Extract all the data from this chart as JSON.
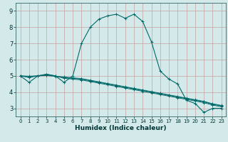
{
  "title": "",
  "xlabel": "Humidex (Indice chaleur)",
  "ylabel": "",
  "bg_color": "#d4eaea",
  "grid_color": "#c8a0a0",
  "line_color": "#006868",
  "xlim": [
    -0.5,
    23.5
  ],
  "ylim": [
    2.5,
    9.5
  ],
  "xticks": [
    0,
    1,
    2,
    3,
    4,
    5,
    6,
    7,
    8,
    9,
    10,
    11,
    12,
    13,
    14,
    15,
    16,
    17,
    18,
    19,
    20,
    21,
    22,
    23
  ],
  "yticks": [
    3,
    4,
    5,
    6,
    7,
    8,
    9
  ],
  "line1_x": [
    0,
    1,
    2,
    3,
    4,
    5,
    6,
    7,
    8,
    9,
    10,
    11,
    12,
    13,
    14,
    15,
    16,
    17,
    18,
    19,
    20,
    21,
    22,
    23
  ],
  "line1_y": [
    5.0,
    4.6,
    5.0,
    5.1,
    5.0,
    4.6,
    5.0,
    7.0,
    8.0,
    8.5,
    8.7,
    8.8,
    8.55,
    8.8,
    8.35,
    7.1,
    5.3,
    4.8,
    4.5,
    3.5,
    3.3,
    2.75,
    3.0,
    3.0
  ],
  "line2_x": [
    0,
    1,
    2,
    3,
    4,
    5,
    6,
    7,
    8,
    9,
    10,
    11,
    12,
    13,
    14,
    15,
    16,
    17,
    18,
    19,
    20,
    21,
    22,
    23
  ],
  "line2_y": [
    5.0,
    4.9,
    5.0,
    5.1,
    5.0,
    4.85,
    4.8,
    4.75,
    4.65,
    4.55,
    4.45,
    4.35,
    4.25,
    4.15,
    4.05,
    3.95,
    3.85,
    3.75,
    3.65,
    3.55,
    3.45,
    3.35,
    3.2,
    3.1
  ],
  "line3_x": [
    0,
    1,
    2,
    3,
    4,
    5,
    6,
    7,
    8,
    9,
    10,
    11,
    12,
    13,
    14,
    15,
    16,
    17,
    18,
    19,
    20,
    21,
    22,
    23
  ],
  "line3_y": [
    5.0,
    4.95,
    5.0,
    5.05,
    4.97,
    4.9,
    4.85,
    4.8,
    4.7,
    4.6,
    4.5,
    4.4,
    4.3,
    4.2,
    4.1,
    4.0,
    3.9,
    3.8,
    3.7,
    3.6,
    3.5,
    3.4,
    3.25,
    3.15
  ],
  "line4_x": [
    0,
    1,
    2,
    3,
    4,
    5,
    6,
    7,
    8,
    9,
    10,
    11,
    12,
    13,
    14,
    15,
    16,
    17,
    18,
    19,
    20,
    21,
    22,
    23
  ],
  "line4_y": [
    5.0,
    4.98,
    5.0,
    5.02,
    4.98,
    4.93,
    4.88,
    4.83,
    4.73,
    4.63,
    4.53,
    4.43,
    4.33,
    4.23,
    4.13,
    4.03,
    3.93,
    3.83,
    3.73,
    3.63,
    3.53,
    3.43,
    3.28,
    3.18
  ],
  "xlabel_fontsize": 6.5,
  "tick_fontsize_x": 5,
  "tick_fontsize_y": 6
}
